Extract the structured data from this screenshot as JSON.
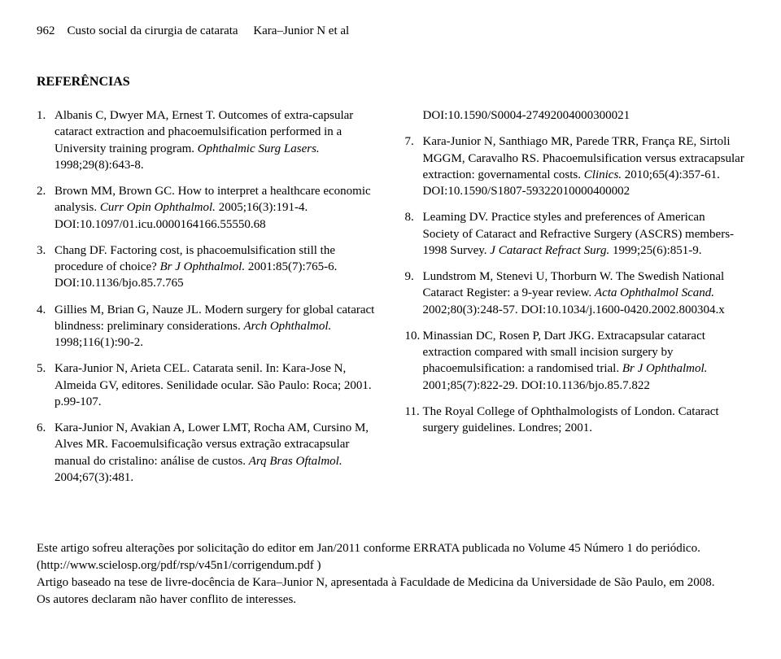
{
  "header": {
    "page_number": "962",
    "running_title": "Custo social da cirurgia de catarata",
    "author_short": "Kara–Junior N et al"
  },
  "section_heading": "REFERÊNCIAS",
  "refs_left": [
    {
      "num": "1.",
      "text": "Albanis C, Dwyer MA, Ernest T. Outcomes of extra-capsular cataract extraction and phacoemulsification performed in a University training program. <i>Ophthalmic Surg Lasers.</i> 1998;29(8):643-8."
    },
    {
      "num": "2.",
      "text": "Brown MM, Brown GC. How to interpret a healthcare economic analysis. <i>Curr Opin Ophthalmol.</i> 2005;16(3):191-4. DOI:10.1097/01.icu.0000164166.55550.68"
    },
    {
      "num": "3.",
      "text": "Chang DF. Factoring cost, is phacoemulsification still the procedure of choice? <i>Br J Ophthalmol.</i> 2001:85(7):765-6. DOI:10.1136/bjo.85.7.765"
    },
    {
      "num": "4.",
      "text": "Gillies M, Brian G, Nauze JL. Modern surgery for global cataract blindness: preliminary considerations. <i>Arch Ophthalmol.</i> 1998;116(1):90-2."
    },
    {
      "num": "5.",
      "text": "Kara-Junior N, Arieta CEL. Catarata senil. In: Kara-Jose N, Almeida GV, editores. Senilidade ocular. São Paulo: Roca; 2001. p.99-107."
    },
    {
      "num": "6.",
      "text": "Kara-Junior N, Avakian A, Lower LMT, Rocha AM, Cursino M, Alves MR. Facoemulsificação versus extração extracapsular manual do cristalino: análise de custos. <i>Arq Bras Oftalmol.</i> 2004;67(3):481."
    }
  ],
  "right_partial": "DOI:10.1590/S0004-27492004000300021",
  "refs_right": [
    {
      "num": "7.",
      "text": "Kara-Junior N, Santhiago MR, Parede TRR, França RE, Sirtoli MGGM, Caravalho RS. Phacoemulsification versus extracapsular extraction: governamental costs. <i>Clinics.</i> 2010;65(4):357-61. DOI:10.1590/S1807-59322010000400002"
    },
    {
      "num": "8.",
      "text": "Leaming DV. Practice styles and preferences of American Society of Cataract and Refractive Surgery (ASCRS) members-1998 Survey. <i>J Cataract Refract Surg.</i> 1999;25(6):851-9."
    },
    {
      "num": "9.",
      "text": "Lundstrom M, Stenevi U, Thorburn W. The Swedish National Cataract Register: a 9-year review. <i>Acta Ophthalmol Scand.</i> 2002;80(3):248-57. DOI:10.1034/j.1600-0420.2002.800304.x"
    },
    {
      "num": "10.",
      "text": "Minassian DC, Rosen P, Dart JKG. Extracapsular cataract extraction compared with small incision surgery by phacoemulsification: a randomised trial. <i>Br J Ophthalmol.</i> 2001;85(7):822-29. DOI:10.1136/bjo.85.7.822"
    },
    {
      "num": "11.",
      "text": "The Royal College of Ophthalmologists of London. Cataract surgery guidelines. Londres; 2001."
    }
  ],
  "footnote": {
    "line1": "Este artigo sofreu alterações por solicitação do editor em Jan/2011 conforme ERRATA publicada no Volume 45 Número 1 do periódico. (http://www.scielosp.org/pdf/rsp/v45n1/corrigendum.pdf )",
    "line2": "Artigo baseado na tese de livre-docência de Kara–Junior N, apresentada à Faculdade de Medicina da Universidade de São Paulo, em 2008.",
    "line3": "Os autores declaram não haver conflito de interesses."
  }
}
